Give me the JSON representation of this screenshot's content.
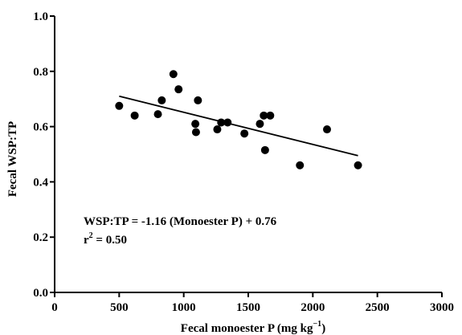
{
  "chart_data": {
    "type": "scatter",
    "title": "",
    "xlabel": "Fecal monoester P (mg kg",
    "xlabel_superscript": "−1",
    "xlabel_suffix": ")",
    "ylabel": "Fecal WSP:TP",
    "xlim": [
      0,
      3000
    ],
    "ylim": [
      0.0,
      1.0
    ],
    "x_ticks": [
      0,
      500,
      1000,
      1500,
      2000,
      2500,
      3000
    ],
    "x_tick_labels": [
      "0",
      "500",
      "1000",
      "1500",
      "2000",
      "2500",
      "3000"
    ],
    "y_ticks": [
      0.0,
      0.2,
      0.4,
      0.6,
      0.8,
      1.0
    ],
    "y_tick_labels": [
      "0.0",
      "0.2",
      "0.4",
      "0.6",
      "0.8",
      "1.0"
    ],
    "grid": false,
    "marker_color": "#000000",
    "points": [
      {
        "x": 500,
        "y": 0.675
      },
      {
        "x": 620,
        "y": 0.64
      },
      {
        "x": 800,
        "y": 0.645
      },
      {
        "x": 830,
        "y": 0.695
      },
      {
        "x": 920,
        "y": 0.79
      },
      {
        "x": 960,
        "y": 0.735
      },
      {
        "x": 1090,
        "y": 0.61
      },
      {
        "x": 1095,
        "y": 0.58
      },
      {
        "x": 1110,
        "y": 0.695
      },
      {
        "x": 1260,
        "y": 0.59
      },
      {
        "x": 1290,
        "y": 0.615
      },
      {
        "x": 1340,
        "y": 0.615
      },
      {
        "x": 1470,
        "y": 0.575
      },
      {
        "x": 1590,
        "y": 0.61
      },
      {
        "x": 1620,
        "y": 0.64
      },
      {
        "x": 1630,
        "y": 0.515
      },
      {
        "x": 1670,
        "y": 0.64
      },
      {
        "x": 1900,
        "y": 0.46
      },
      {
        "x": 2110,
        "y": 0.59
      },
      {
        "x": 2350,
        "y": 0.46
      }
    ],
    "fit_line": {
      "x": [
        500,
        2350
      ],
      "y": [
        0.71,
        0.495
      ]
    },
    "annotations": {
      "equation": "WSP:TP = -1.16 (Monoester P) + 0.76",
      "r2_base": "r",
      "r2_exponent": "2",
      "r2_value": " = 0.50"
    }
  }
}
